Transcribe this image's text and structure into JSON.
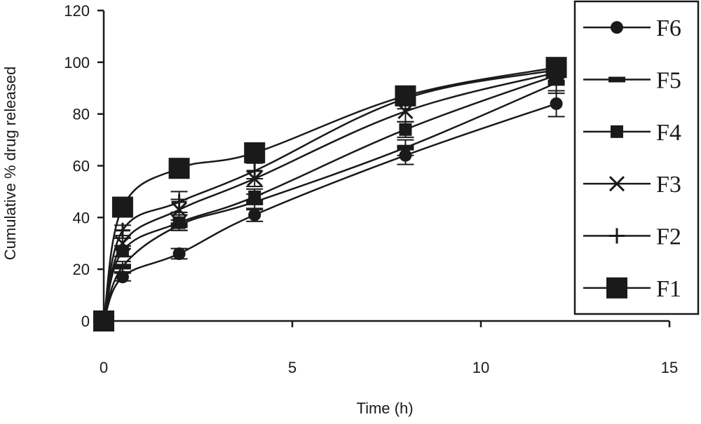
{
  "chart_data": {
    "type": "line",
    "xlabel": "Time (h)",
    "ylabel": "Cumulative % drug released",
    "xlim": [
      0,
      15
    ],
    "ylim": [
      0,
      120
    ],
    "x_ticks": [
      0,
      5,
      10,
      15
    ],
    "y_ticks": [
      0,
      20,
      40,
      60,
      80,
      100,
      120
    ],
    "grid": false,
    "legend_position": "top-right",
    "x": [
      0,
      0.5,
      2,
      4,
      8,
      12
    ],
    "series": [
      {
        "name": "F6",
        "marker": "circle",
        "values": [
          0,
          17,
          26,
          41,
          64,
          84
        ],
        "errors": [
          0,
          1.5,
          2,
          2.5,
          3.5,
          5
        ]
      },
      {
        "name": "F5",
        "marker": "dash",
        "values": [
          0,
          21,
          37,
          46,
          67,
          92
        ],
        "errors": [
          0,
          2,
          2,
          3,
          3,
          4
        ]
      },
      {
        "name": "F4",
        "marker": "small-square",
        "values": [
          0,
          27,
          38,
          48,
          74,
          95
        ],
        "errors": [
          0,
          2,
          3,
          3,
          3,
          3
        ]
      },
      {
        "name": "F3",
        "marker": "x",
        "values": [
          0,
          30,
          43,
          55,
          81,
          96
        ],
        "errors": [
          0,
          2,
          4,
          3,
          4,
          3
        ]
      },
      {
        "name": "F2",
        "marker": "plus",
        "values": [
          0,
          35,
          46,
          58,
          86,
          97
        ],
        "errors": [
          0,
          2,
          4,
          3,
          4,
          3
        ]
      },
      {
        "name": "F1",
        "marker": "big-square",
        "values": [
          0,
          44,
          59,
          65,
          87,
          98
        ],
        "errors": [
          0,
          2,
          2,
          2,
          3,
          2
        ]
      }
    ]
  }
}
